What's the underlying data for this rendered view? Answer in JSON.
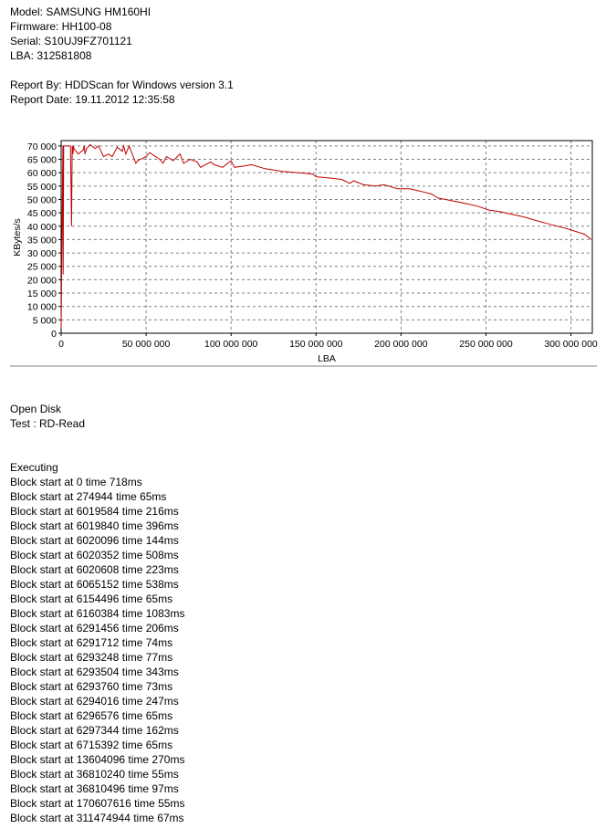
{
  "header": {
    "model": "Model: SAMSUNG HM160HI",
    "firmware": "Firmware: HH100-08",
    "serial": "Serial: S10UJ9FZ701121",
    "lba": "LBA: 312581808",
    "report_by": "Report By: HDDScan for Windows version 3.1",
    "report_date": "Report Date: 19.11.2012 12:35:58"
  },
  "chart_data": {
    "type": "line",
    "title": "",
    "xlabel": "LBA",
    "ylabel": "KBytes/s",
    "xlim": [
      0,
      312581808
    ],
    "ylim": [
      0,
      72000
    ],
    "x_ticks": [
      0,
      50000000,
      100000000,
      150000000,
      200000000,
      250000000,
      300000000
    ],
    "x_tick_labels": [
      "0",
      "50 000 000",
      "100 000 000",
      "150 000 000",
      "200 000 000",
      "250 000 000",
      "300 000 000"
    ],
    "y_ticks": [
      0,
      5000,
      10000,
      15000,
      20000,
      25000,
      30000,
      35000,
      40000,
      45000,
      50000,
      55000,
      60000,
      65000,
      70000
    ],
    "y_tick_labels": [
      "0",
      "5 000",
      "10 000",
      "15 000",
      "20 000",
      "25 000",
      "30 000",
      "35 000",
      "40 000",
      "45 000",
      "50 000",
      "55 000",
      "60 000",
      "65 000",
      "70 000"
    ],
    "grid": true,
    "line_color": "#c00000",
    "series": [
      {
        "x": [
          0,
          500000,
          1000000,
          1200000,
          1500000,
          3000000,
          5500000,
          6000000,
          6100000,
          6500000,
          7000000,
          7200000,
          7500000,
          10000000,
          13000000,
          13600000,
          14000000,
          15000000,
          17000000,
          20000000,
          22000000,
          25000000,
          28000000,
          30000000,
          33000000,
          36000000,
          36800000,
          38000000,
          40000000,
          44000000,
          45000000,
          50000000,
          52000000,
          58000000,
          60000000,
          62000000,
          66000000,
          70000000,
          72000000,
          76000000,
          80000000,
          82000000,
          88000000,
          90000000,
          95000000,
          100000000,
          102000000,
          108000000,
          112000000,
          120000000,
          125000000,
          130000000,
          140000000,
          148000000,
          150000000,
          158000000,
          165000000,
          170000000,
          172000000,
          178000000,
          185000000,
          190000000,
          198000000,
          205000000,
          212000000,
          218000000,
          222000000,
          230000000,
          238000000,
          245000000,
          252000000,
          258000000,
          265000000,
          272000000,
          280000000,
          286000000,
          292000000,
          298000000,
          303000000,
          308000000,
          312000000
        ],
        "y": [
          2000,
          35000,
          70000,
          22000,
          70000,
          70000,
          70000,
          45000,
          40000,
          70000,
          67000,
          70000,
          69000,
          67000,
          68500,
          70000,
          67000,
          69000,
          70500,
          69000,
          70000,
          66000,
          67000,
          66000,
          69500,
          68000,
          70000,
          67000,
          70000,
          63500,
          64500,
          66000,
          67500,
          65000,
          63500,
          66000,
          64500,
          67000,
          63500,
          65000,
          64000,
          62000,
          64000,
          63000,
          62000,
          64500,
          62000,
          62500,
          63000,
          61500,
          61000,
          60500,
          60000,
          59500,
          58500,
          58000,
          57500,
          56000,
          57000,
          55500,
          55000,
          55500,
          54000,
          54000,
          53000,
          52000,
          50500,
          49500,
          48500,
          47500,
          46000,
          45500,
          44500,
          43500,
          42000,
          41000,
          40000,
          39000,
          38000,
          37000,
          35000
        ]
      }
    ]
  },
  "log": {
    "open_disk": "Open Disk",
    "test": "Test : RD-Read",
    "executing": "Executing",
    "lines": [
      "Block start at 0 time 718ms",
      "Block start at 274944 time 65ms",
      "Block start at 6019584 time 216ms",
      "Block start at 6019840 time 396ms",
      "Block start at 6020096 time 144ms",
      "Block start at 6020352 time 508ms",
      "Block start at 6020608 time 223ms",
      "Block start at 6065152 time 538ms",
      "Block start at 6154496 time 65ms",
      "Block start at 6160384 time 1083ms",
      "Block start at 6291456 time 206ms",
      "Block start at 6291712 time 74ms",
      "Block start at 6293248 time 77ms",
      "Block start at 6293504 time 343ms",
      "Block start at 6293760 time 73ms",
      "Block start at 6294016 time 247ms",
      "Block start at 6296576 time 65ms",
      "Block start at 6297344 time 162ms",
      "Block start at 6715392 time 65ms",
      "Block start at 13604096 time 270ms",
      "Block start at 36810240 time 55ms",
      "Block start at 36810496 time 97ms",
      "Block start at 170607616 time 55ms",
      "Block start at 311474944 time 67ms"
    ]
  }
}
